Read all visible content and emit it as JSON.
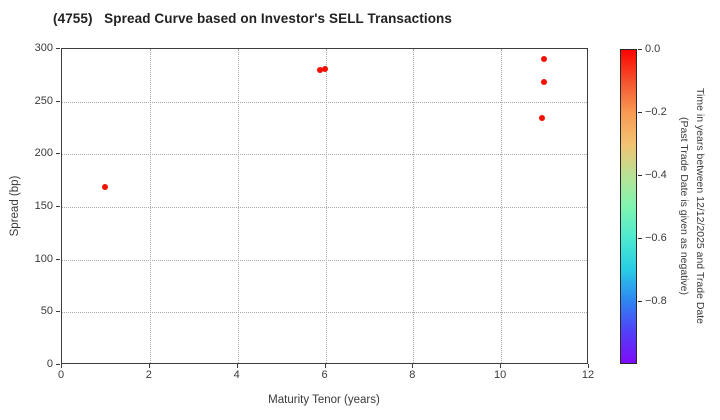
{
  "chart_data": {
    "type": "scatter",
    "title": "(4755)   Spread Curve based on Investor's SELL Transactions",
    "xlabel": "Maturity Tenor (years)",
    "ylabel": "Spread (bp)",
    "xlim": [
      0,
      12
    ],
    "ylim": [
      0,
      300
    ],
    "xticks": [
      0,
      2,
      4,
      6,
      8,
      10,
      12
    ],
    "yticks": [
      0,
      50,
      100,
      150,
      200,
      250,
      300
    ],
    "grid": true,
    "legend_position": "none",
    "marker_color": "#f21000",
    "points": [
      {
        "x": 1.0,
        "y": 168,
        "time": 0.0
      },
      {
        "x": 5.9,
        "y": 279,
        "time": 0.0
      },
      {
        "x": 6.0,
        "y": 280,
        "time": 0.0
      },
      {
        "x": 11.0,
        "y": 290,
        "time": 0.0
      },
      {
        "x": 11.0,
        "y": 268,
        "time": 0.0
      },
      {
        "x": 10.95,
        "y": 234,
        "time": 0.0
      }
    ],
    "colorbar": {
      "title_line1": "Time in years between 12/12/2025 and Trade Date",
      "title_line2": "(Past Trade Date is given as negative)",
      "tick_labels": [
        "0.0",
        "−0.2",
        "−0.4",
        "−0.6",
        "−0.8"
      ],
      "tick_values": [
        0.0,
        -0.2,
        -0.4,
        -0.6,
        -0.8
      ],
      "vmax": 0.0,
      "vmin": -1.0,
      "gradient_top_to_bottom": [
        "#fb0500",
        "#f5522e",
        "#f89a53",
        "#f2c271",
        "#b9e295",
        "#80f5b0",
        "#4dead0",
        "#29cde4",
        "#2e86f2",
        "#5140f7",
        "#7e0cf8"
      ]
    }
  }
}
